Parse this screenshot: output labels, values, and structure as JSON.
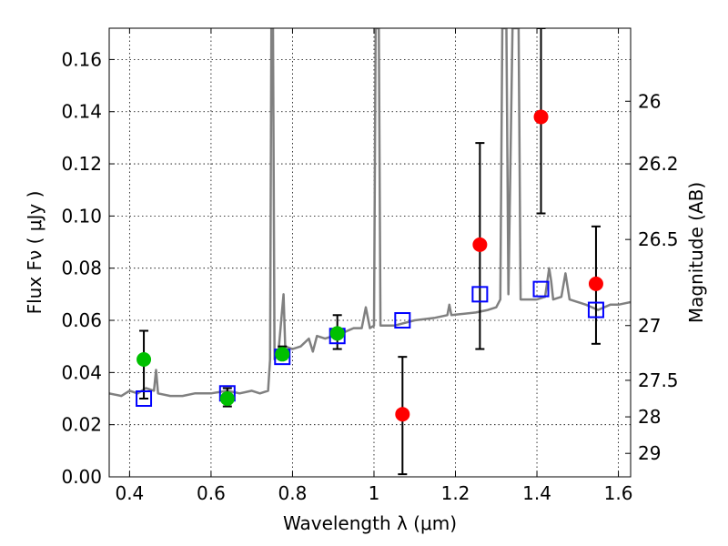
{
  "chart_data": {
    "type": "scatter",
    "title": "",
    "xlabel": "Wavelength  λ (μm)",
    "ylabel": "Flux  Fν  ( μJy )",
    "y2label": "Magnitude (AB)",
    "xlim": [
      0.35,
      1.63
    ],
    "ylim": [
      0.0,
      0.172
    ],
    "grid": true,
    "x_ticks": [
      0.4,
      0.6,
      0.8,
      1.0,
      1.2,
      1.4,
      1.6
    ],
    "x_tick_labels": [
      "0.4",
      "0.6",
      "0.8",
      "1",
      "1.2",
      "1.4",
      "1.6"
    ],
    "y_ticks": [
      0.0,
      0.02,
      0.04,
      0.06,
      0.08,
      0.1,
      0.12,
      0.14,
      0.16
    ],
    "y_tick_labels": [
      "0.00",
      "0.02",
      "0.04",
      "0.06",
      "0.08",
      "0.10",
      "0.12",
      "0.14",
      "0.16"
    ],
    "y2_ticks": [
      {
        "label": "26",
        "flux": 0.144
      },
      {
        "label": "26.2",
        "flux": 0.12
      },
      {
        "label": "26.5",
        "flux": 0.091
      },
      {
        "label": "27",
        "flux": 0.058
      },
      {
        "label": "27.5",
        "flux": 0.037
      },
      {
        "label": "28",
        "flux": 0.023
      },
      {
        "label": "29",
        "flux": 0.009
      }
    ],
    "colors": {
      "spectrum": "#808080",
      "green_points": "#00c000",
      "red_points": "#ff0000",
      "model_squares": "#0000ff",
      "errorbars": "#000000"
    },
    "series": [
      {
        "style": "line",
        "color": "#808080",
        "points": [
          [
            0.35,
            0.032
          ],
          [
            0.38,
            0.031
          ],
          [
            0.4,
            0.033
          ],
          [
            0.42,
            0.032
          ],
          [
            0.44,
            0.034
          ],
          [
            0.46,
            0.033
          ],
          [
            0.465,
            0.041
          ],
          [
            0.47,
            0.032
          ],
          [
            0.5,
            0.031
          ],
          [
            0.53,
            0.031
          ],
          [
            0.56,
            0.032
          ],
          [
            0.6,
            0.032
          ],
          [
            0.64,
            0.033
          ],
          [
            0.67,
            0.032
          ],
          [
            0.7,
            0.033
          ],
          [
            0.72,
            0.032
          ],
          [
            0.74,
            0.033
          ],
          [
            0.745,
            0.045
          ],
          [
            0.748,
            0.172
          ],
          [
            0.752,
            0.172
          ],
          [
            0.756,
            0.045
          ],
          [
            0.765,
            0.047
          ],
          [
            0.775,
            0.065
          ],
          [
            0.778,
            0.07
          ],
          [
            0.782,
            0.05
          ],
          [
            0.8,
            0.049
          ],
          [
            0.82,
            0.05
          ],
          [
            0.84,
            0.053
          ],
          [
            0.85,
            0.048
          ],
          [
            0.86,
            0.054
          ],
          [
            0.88,
            0.053
          ],
          [
            0.9,
            0.054
          ],
          [
            0.92,
            0.055
          ],
          [
            0.95,
            0.057
          ],
          [
            0.97,
            0.057
          ],
          [
            0.98,
            0.065
          ],
          [
            0.99,
            0.057
          ],
          [
            1.0,
            0.058
          ],
          [
            1.004,
            0.172
          ],
          [
            1.012,
            0.172
          ],
          [
            1.016,
            0.058
          ],
          [
            1.05,
            0.058
          ],
          [
            1.1,
            0.06
          ],
          [
            1.15,
            0.061
          ],
          [
            1.18,
            0.062
          ],
          [
            1.185,
            0.066
          ],
          [
            1.19,
            0.062
          ],
          [
            1.25,
            0.063
          ],
          [
            1.28,
            0.064
          ],
          [
            1.3,
            0.065
          ],
          [
            1.31,
            0.068
          ],
          [
            1.315,
            0.172
          ],
          [
            1.325,
            0.172
          ],
          [
            1.33,
            0.07
          ],
          [
            1.34,
            0.172
          ],
          [
            1.355,
            0.172
          ],
          [
            1.36,
            0.068
          ],
          [
            1.4,
            0.068
          ],
          [
            1.42,
            0.069
          ],
          [
            1.43,
            0.08
          ],
          [
            1.435,
            0.075
          ],
          [
            1.44,
            0.068
          ],
          [
            1.46,
            0.069
          ],
          [
            1.47,
            0.078
          ],
          [
            1.48,
            0.068
          ],
          [
            1.52,
            0.066
          ],
          [
            1.55,
            0.064
          ],
          [
            1.58,
            0.066
          ],
          [
            1.6,
            0.066
          ],
          [
            1.63,
            0.067
          ]
        ]
      },
      {
        "style": "markers-circle",
        "color": "#00c000",
        "points": [
          {
            "x": 0.435,
            "y": 0.045,
            "err": [
              0.03,
              0.056
            ]
          },
          {
            "x": 0.64,
            "y": 0.03,
            "err": [
              0.027,
              0.034
            ]
          },
          {
            "x": 0.775,
            "y": 0.047,
            "err": [
              0.045,
              0.05
            ]
          },
          {
            "x": 0.91,
            "y": 0.055,
            "err": [
              0.049,
              0.062
            ]
          }
        ]
      },
      {
        "style": "markers-circle",
        "color": "#ff0000",
        "points": [
          {
            "x": 1.07,
            "y": 0.024,
            "err": [
              0.001,
              0.046
            ]
          },
          {
            "x": 1.26,
            "y": 0.089,
            "err": [
              0.049,
              0.128
            ]
          },
          {
            "x": 1.41,
            "y": 0.138,
            "err": [
              0.101,
              0.172
            ]
          },
          {
            "x": 1.545,
            "y": 0.074,
            "err": [
              0.051,
              0.096
            ]
          }
        ]
      },
      {
        "style": "markers-square-open",
        "color": "#0000ff",
        "points": [
          {
            "x": 0.435,
            "y": 0.03
          },
          {
            "x": 0.64,
            "y": 0.032
          },
          {
            "x": 0.775,
            "y": 0.046
          },
          {
            "x": 0.91,
            "y": 0.054
          },
          {
            "x": 1.07,
            "y": 0.06
          },
          {
            "x": 1.26,
            "y": 0.07
          },
          {
            "x": 1.41,
            "y": 0.072
          },
          {
            "x": 1.545,
            "y": 0.064
          }
        ]
      }
    ]
  }
}
